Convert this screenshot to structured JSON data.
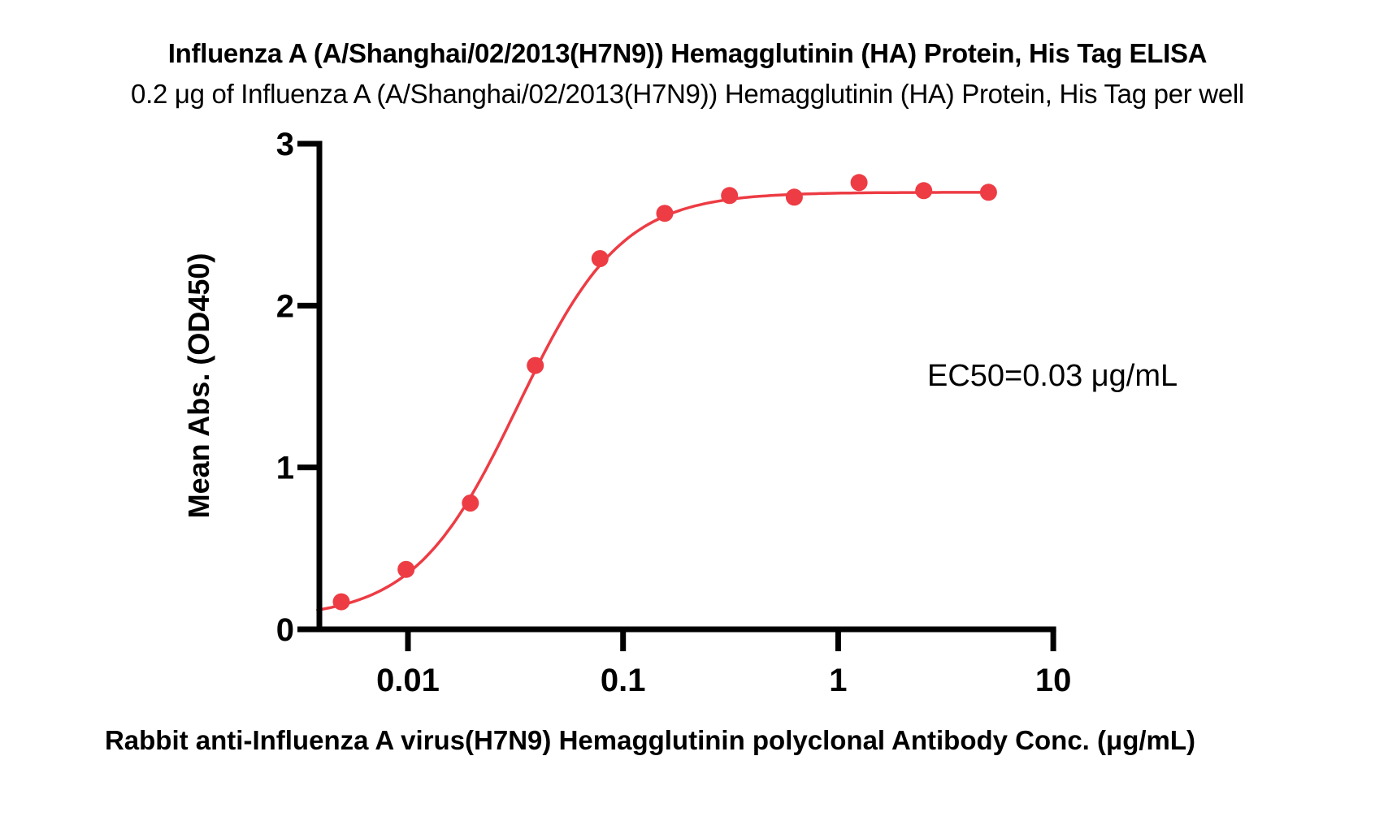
{
  "chart_data": {
    "type": "scatter",
    "title": "Influenza A (A/Shanghai/02/2013(H7N9)) Hemagglutinin (HA) Protein, His Tag ELISA",
    "subtitle": "0.2 μg of Influenza A (A/Shanghai/02/2013(H7N9)) Hemagglutinin (HA) Protein, His Tag per well",
    "xlabel": "Rabbit anti-Influenza A virus(H7N9) Hemagglutinin polyclonal Antibody Conc. (μg/mL)",
    "ylabel": "Mean Abs. (OD450)",
    "annotation": "EC50=0.03 μg/mL",
    "x_scale": "log",
    "xlim": [
      0.0038,
      10
    ],
    "ylim": [
      0,
      3
    ],
    "x_ticks": [
      0.01,
      0.1,
      1,
      10
    ],
    "x_tick_labels": [
      "0.01",
      "0.1",
      "1",
      "10"
    ],
    "y_ticks": [
      0,
      1,
      2,
      3
    ],
    "y_tick_labels": [
      "0",
      "1",
      "2",
      "3"
    ],
    "grid": false,
    "legend": "none",
    "series": [
      {
        "x": [
          0.0049,
          0.0098,
          0.0195,
          0.0391,
          0.0781,
          0.1563,
          0.3125,
          0.625,
          1.25,
          2.5,
          5
        ],
        "y": [
          0.17,
          0.37,
          0.78,
          1.63,
          2.29,
          2.57,
          2.68,
          2.67,
          2.76,
          2.71,
          2.7
        ]
      }
    ],
    "fit_curve": {
      "model": "4PL",
      "bottom": 0.065,
      "top": 2.7,
      "ec50": 0.0325,
      "hill": 1.8,
      "x_start": 0.0038,
      "x_end": 5
    },
    "marker_color": "#ED3C44",
    "curve_color": "#ED3C44",
    "axis_color": "#000000"
  }
}
